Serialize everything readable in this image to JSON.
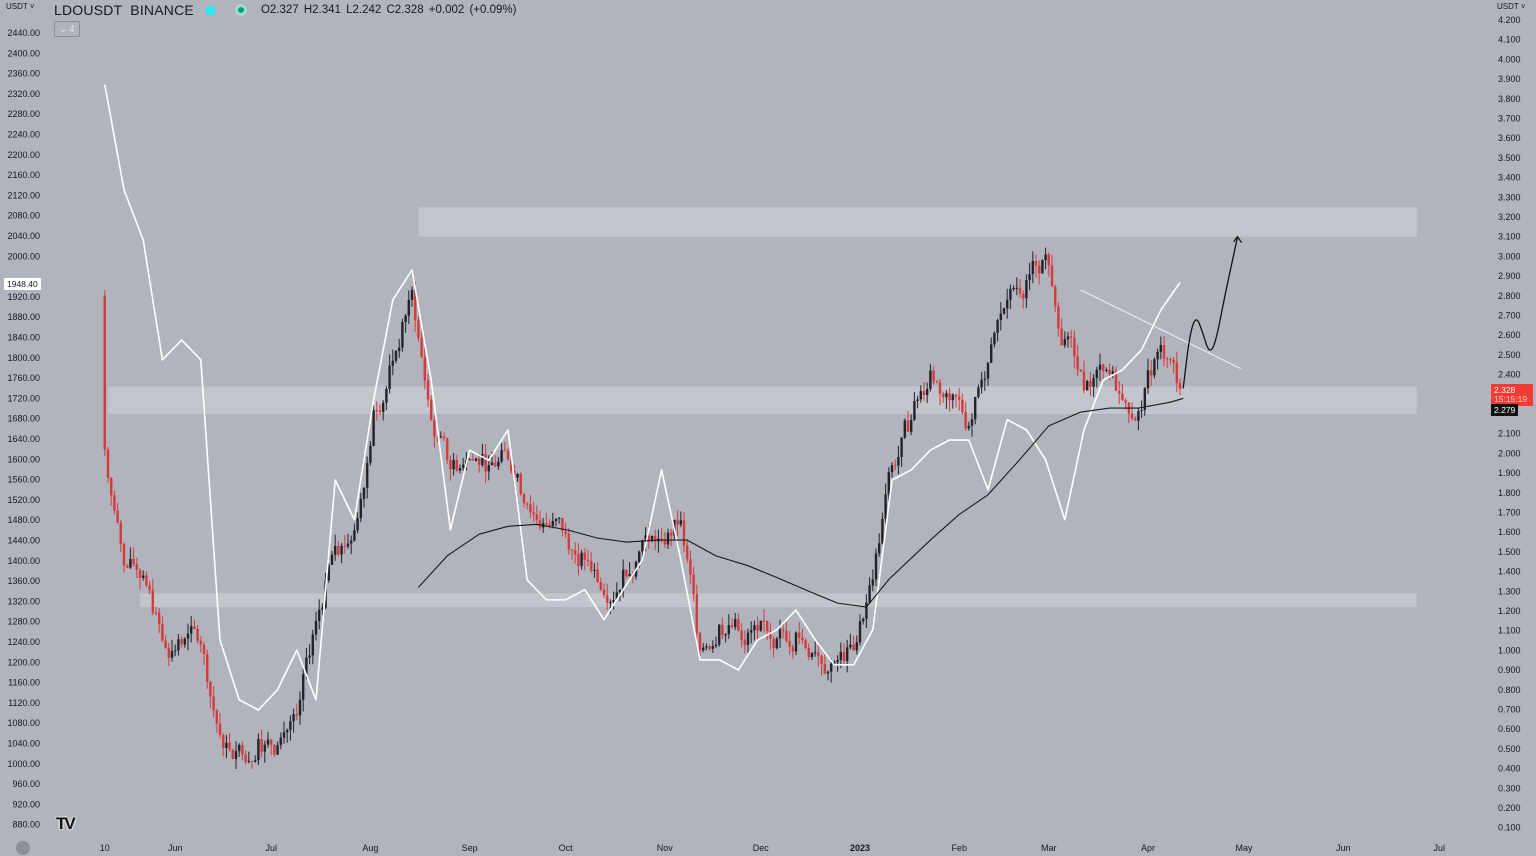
{
  "header": {
    "currency_left": "USDT",
    "currency_right": "USDT",
    "symbol": "LDOUSDT",
    "exchange": "BINANCE",
    "ohlc": "O2.327 H2.341 L2.242 C2.328 +0.002 (+0.09%)",
    "collapse_label": "4"
  },
  "labels": {
    "crosshair_left": "1948.40",
    "last_price": "2.328",
    "countdown": "15:15:19",
    "ma_value": "2.279"
  },
  "colors": {
    "background": "#b2b4bd",
    "up": "#222228",
    "down": "#d43a3c",
    "overlay_line": "#ffffff",
    "ma_line": "#1a1a1a",
    "zone": "#c6c8cf",
    "last_price": "#f23b33"
  },
  "chart_data": {
    "type": "candlestick",
    "title": "",
    "left_axis": {
      "min": 880,
      "max": 2440,
      "step": 40,
      "decimals": 2
    },
    "right_axis": {
      "min": 0.1,
      "max": 4.2,
      "step": 0.1,
      "decimals": 3
    },
    "x_ticks": [
      {
        "label": "10",
        "date": "2022-05-10"
      },
      {
        "label": "Jun",
        "date": "2022-06-01"
      },
      {
        "label": "Jul",
        "date": "2022-07-01"
      },
      {
        "label": "Aug",
        "date": "2022-08-01"
      },
      {
        "label": "Sep",
        "date": "2022-09-01"
      },
      {
        "label": "Oct",
        "date": "2022-10-01"
      },
      {
        "label": "Nov",
        "date": "2022-11-01"
      },
      {
        "label": "Dec",
        "date": "2022-12-01"
      },
      {
        "label": "2023",
        "date": "2023-01-01"
      },
      {
        "label": "Feb",
        "date": "2023-02-01"
      },
      {
        "label": "Mar",
        "date": "2023-03-01"
      },
      {
        "label": "Apr",
        "date": "2023-04-01"
      },
      {
        "label": "May",
        "date": "2023-05-01"
      },
      {
        "label": "Jun",
        "date": "2023-06-01"
      },
      {
        "label": "Jul",
        "date": "2023-07-01"
      }
    ],
    "candles_first_open": 2.8,
    "candles": {
      "axis": "right",
      "dates": [
        "2022-05-10",
        "2022-05-16",
        "2022-05-22",
        "2022-05-28",
        "2022-06-03",
        "2022-06-09",
        "2022-06-15",
        "2022-06-21",
        "2022-06-27",
        "2022-07-03",
        "2022-07-09",
        "2022-07-15",
        "2022-07-21",
        "2022-07-27",
        "2022-08-02",
        "2022-08-08",
        "2022-08-14",
        "2022-08-20",
        "2022-08-26",
        "2022-09-01",
        "2022-09-07",
        "2022-09-13",
        "2022-09-19",
        "2022-09-25",
        "2022-10-01",
        "2022-10-07",
        "2022-10-13",
        "2022-10-19",
        "2022-10-25",
        "2022-10-31",
        "2022-11-06",
        "2022-11-12",
        "2022-11-18",
        "2022-11-24",
        "2022-11-30",
        "2022-12-06",
        "2022-12-12",
        "2022-12-18",
        "2022-12-24",
        "2022-12-30",
        "2023-01-05",
        "2023-01-11",
        "2023-01-17",
        "2023-01-23",
        "2023-01-29",
        "2023-02-04",
        "2023-02-10",
        "2023-02-16",
        "2023-02-22",
        "2023-02-28",
        "2023-03-06",
        "2023-03-12",
        "2023-03-18",
        "2023-03-24",
        "2023-03-30",
        "2023-04-05",
        "2023-04-11"
      ],
      "close": [
        2.02,
        1.43,
        1.38,
        1.05,
        1.03,
        1.03,
        0.57,
        0.52,
        0.55,
        0.52,
        0.67,
        1.15,
        1.53,
        1.61,
        2.22,
        2.47,
        2.83,
        2.17,
        1.92,
        1.97,
        1.94,
        1.97,
        1.74,
        1.64,
        1.59,
        1.46,
        1.28,
        1.41,
        1.56,
        1.56,
        1.66,
        1.0,
        1.13,
        1.1,
        1.1,
        1.06,
        1.09,
        0.99,
        0.94,
        1.0,
        1.36,
        1.94,
        2.17,
        2.42,
        2.27,
        2.14,
        2.46,
        2.78,
        2.88,
        3.01,
        2.58,
        2.32,
        2.42,
        2.27,
        2.22,
        2.55,
        2.328
      ]
    },
    "overlay_line": {
      "axis": "left",
      "dates": [
        "2022-05-10",
        "2022-05-16",
        "2022-05-22",
        "2022-05-28",
        "2022-06-03",
        "2022-06-09",
        "2022-06-15",
        "2022-06-21",
        "2022-06-27",
        "2022-07-03",
        "2022-07-09",
        "2022-07-15",
        "2022-07-21",
        "2022-07-27",
        "2022-08-02",
        "2022-08-08",
        "2022-08-14",
        "2022-08-20",
        "2022-08-26",
        "2022-09-01",
        "2022-09-07",
        "2022-09-13",
        "2022-09-19",
        "2022-09-25",
        "2022-10-01",
        "2022-10-07",
        "2022-10-13",
        "2022-10-19",
        "2022-10-25",
        "2022-10-31",
        "2022-11-06",
        "2022-11-12",
        "2022-11-18",
        "2022-11-24",
        "2022-11-30",
        "2022-12-06",
        "2022-12-12",
        "2022-12-18",
        "2022-12-24",
        "2022-12-30",
        "2023-01-05",
        "2023-01-11",
        "2023-01-17",
        "2023-01-23",
        "2023-01-29",
        "2023-02-04",
        "2023-02-10",
        "2023-02-16",
        "2023-02-22",
        "2023-02-28",
        "2023-03-06",
        "2023-03-12",
        "2023-03-18",
        "2023-03-24",
        "2023-03-30",
        "2023-04-05",
        "2023-04-11"
      ],
      "values": [
        2338,
        2131,
        2032,
        1796,
        1835,
        1796,
        1244,
        1126,
        1106,
        1146,
        1224,
        1126,
        1559,
        1481,
        1717,
        1914,
        1973,
        1756,
        1461,
        1618,
        1598,
        1658,
        1362,
        1323,
        1323,
        1343,
        1284,
        1343,
        1402,
        1579,
        1402,
        1205,
        1205,
        1185,
        1244,
        1264,
        1303,
        1244,
        1195,
        1195,
        1264,
        1559,
        1579,
        1618,
        1638,
        1638,
        1540,
        1678,
        1658,
        1599,
        1481,
        1658,
        1756,
        1776,
        1816,
        1894,
        1948.4
      ]
    },
    "moving_average": {
      "axis": "right",
      "dates": [
        "2022-08-16",
        "2022-08-25",
        "2022-09-04",
        "2022-09-13",
        "2022-09-22",
        "2022-10-02",
        "2022-10-11",
        "2022-10-20",
        "2022-10-30",
        "2022-11-08",
        "2022-11-17",
        "2022-11-27",
        "2022-12-06",
        "2022-12-16",
        "2022-12-25",
        "2023-01-03",
        "2023-01-10",
        "2023-01-23",
        "2023-02-01",
        "2023-02-10",
        "2023-02-20",
        "2023-03-01",
        "2023-03-11",
        "2023-03-20",
        "2023-03-29",
        "2023-04-08",
        "2023-04-12"
      ],
      "values": [
        1.32,
        1.48,
        1.59,
        1.63,
        1.64,
        1.61,
        1.57,
        1.55,
        1.56,
        1.56,
        1.48,
        1.43,
        1.37,
        1.3,
        1.24,
        1.22,
        1.36,
        1.56,
        1.69,
        1.79,
        1.97,
        2.14,
        2.21,
        2.23,
        2.23,
        2.26,
        2.279
      ]
    },
    "zones": [
      {
        "axis": "right",
        "from_date": "2022-08-16",
        "to_date": "2023-06-24",
        "low": 3.1,
        "high": 3.25
      },
      {
        "axis": "right",
        "from_date": "2022-05-11",
        "to_date": "2023-06-24",
        "low": 2.2,
        "high": 2.34
      },
      {
        "axis": "right",
        "from_date": "2022-05-21",
        "to_date": "2023-06-24",
        "low": 1.22,
        "high": 1.29
      }
    ],
    "trendline": {
      "axis": "right",
      "points": [
        [
          "2023-03-11",
          2.83
        ],
        [
          "2023-04-30",
          2.43
        ]
      ]
    },
    "projection": {
      "axis": "right",
      "points": [
        [
          "2023-04-12",
          2.33
        ],
        [
          "2023-04-14",
          2.6
        ],
        [
          "2023-04-16",
          2.7
        ],
        [
          "2023-04-18",
          2.62
        ],
        [
          "2023-04-20",
          2.51
        ],
        [
          "2023-04-22",
          2.55
        ],
        [
          "2023-04-25",
          2.8
        ],
        [
          "2023-04-29",
          3.1
        ]
      ]
    }
  }
}
